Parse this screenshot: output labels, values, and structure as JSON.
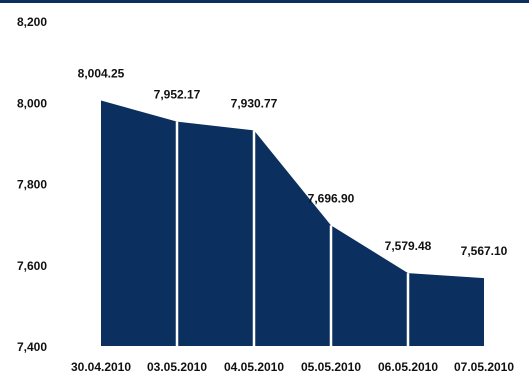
{
  "chart_data": {
    "type": "area",
    "categories": [
      "30.04.2010",
      "03.05.2010",
      "04.05.2010",
      "05.05.2010",
      "06.05.2010",
      "07.05.2010"
    ],
    "values": [
      8004.25,
      7952.17,
      7930.77,
      7696.9,
      7579.48,
      7567.1
    ],
    "data_labels": [
      "8,004.25",
      "7,952.17",
      "7,930.77",
      "7,696.90",
      "7,579.48",
      "7,567.10"
    ],
    "y_ticks": [
      "7,400",
      "7,600",
      "7,800",
      "8,000",
      "8,200"
    ],
    "ylim": [
      7400,
      8200
    ],
    "grid": false,
    "fill_color": "#0b2f5e",
    "separator_color": "#ffffff"
  }
}
